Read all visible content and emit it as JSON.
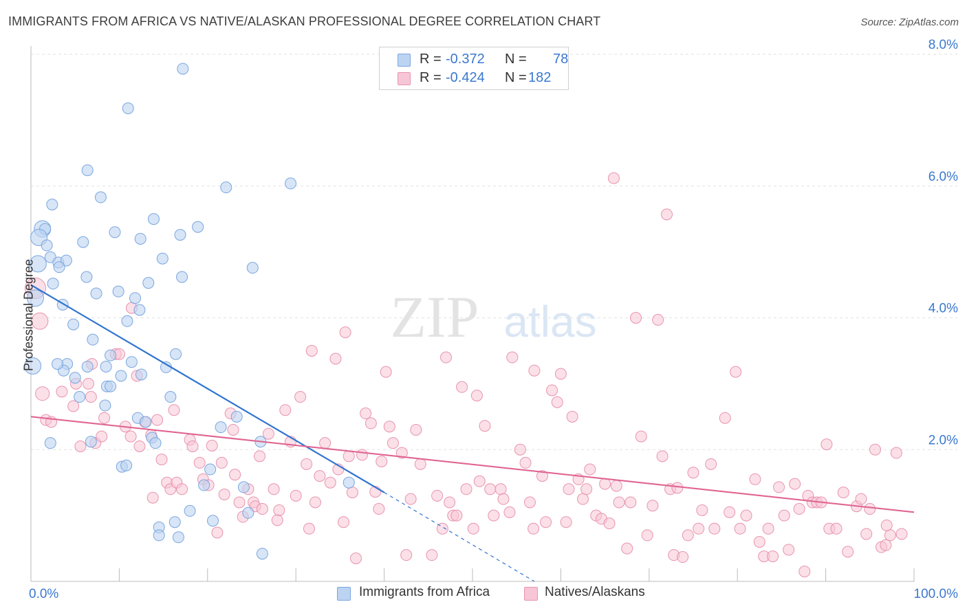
{
  "title": "IMMIGRANTS FROM AFRICA VS NATIVE/ALASKAN PROFESSIONAL DEGREE CORRELATION CHART",
  "source": "Source: ZipAtlas.com",
  "watermark": {
    "zip": "ZIP",
    "atlas": "atlas"
  },
  "colors": {
    "blue_fill": "#bcd4f2",
    "blue_stroke": "#7aa6de",
    "blue_line": "#2f74d0",
    "pink_fill": "#f7c6d6",
    "pink_stroke": "#e893b0",
    "pink_line": "#e06592",
    "axis_value": "#3a78cf",
    "grid": "#e2e2e2"
  },
  "legend": {
    "rows": [
      {
        "r_label": "R =",
        "r_value": "-0.372",
        "n_label": "N =",
        "n_value": "78"
      },
      {
        "r_label": "R =",
        "r_value": "-0.424",
        "n_label": "N =",
        "n_value": "182"
      }
    ]
  },
  "bottom_legend": {
    "series1": "Immigrants from Africa",
    "series2": "Natives/Alaskans"
  },
  "chart_data": {
    "type": "scatter",
    "title": "IMMIGRANTS FROM AFRICA VS NATIVE/ALASKAN PROFESSIONAL DEGREE CORRELATION CHART",
    "xlabel": "",
    "ylabel": "Professional Degree",
    "xlim": [
      0,
      100
    ],
    "ylim": [
      0,
      8.0
    ],
    "x_tick_labels": [
      "0.0%",
      "100.0%"
    ],
    "y_ticks": [
      2.0,
      4.0,
      6.0,
      8.0
    ],
    "y_tick_labels": [
      "2.0%",
      "4.0%",
      "6.0%",
      "8.0%"
    ],
    "grid": true,
    "legend_position": "top-center",
    "series": [
      {
        "name": "Immigrants from Africa",
        "r": -0.372,
        "n": 78,
        "trend": {
          "x": [
            0,
            40
          ],
          "y": [
            4.5,
            1.35
          ],
          "dashed_to": [
            57,
            0
          ]
        },
        "points": [
          [
            17.2,
            7.78
          ],
          [
            11.0,
            7.18
          ],
          [
            6.4,
            6.24
          ],
          [
            22.1,
            5.98
          ],
          [
            29.4,
            6.04
          ],
          [
            2.4,
            5.72
          ],
          [
            7.9,
            5.83
          ],
          [
            1.3,
            5.35
          ],
          [
            1.6,
            5.35
          ],
          [
            9.5,
            5.3
          ],
          [
            13.9,
            5.5
          ],
          [
            0.9,
            5.22
          ],
          [
            1.8,
            5.1
          ],
          [
            5.9,
            5.15
          ],
          [
            12.4,
            5.2
          ],
          [
            16.9,
            5.26
          ],
          [
            18.9,
            5.38
          ],
          [
            2.2,
            4.92
          ],
          [
            0.8,
            4.82
          ],
          [
            3.1,
            4.84
          ],
          [
            4.0,
            4.87
          ],
          [
            14.9,
            4.9
          ],
          [
            3.2,
            4.77
          ],
          [
            25.1,
            4.76
          ],
          [
            6.3,
            4.62
          ],
          [
            17.1,
            4.62
          ],
          [
            2.5,
            4.52
          ],
          [
            13.3,
            4.53
          ],
          [
            7.4,
            4.37
          ],
          [
            9.9,
            4.4
          ],
          [
            0.5,
            4.3
          ],
          [
            11.8,
            4.3
          ],
          [
            3.6,
            4.2
          ],
          [
            12.3,
            4.12
          ],
          [
            10.9,
            3.95
          ],
          [
            4.8,
            3.9
          ],
          [
            7.0,
            3.67
          ],
          [
            9.0,
            3.43
          ],
          [
            16.4,
            3.45
          ],
          [
            11.4,
            3.33
          ],
          [
            4.1,
            3.3
          ],
          [
            0.2,
            3.27
          ],
          [
            6.4,
            3.26
          ],
          [
            8.5,
            3.26
          ],
          [
            15.3,
            3.25
          ],
          [
            3.7,
            3.2
          ],
          [
            5.0,
            3.09
          ],
          [
            10.2,
            3.12
          ],
          [
            12.5,
            3.14
          ],
          [
            8.6,
            2.96
          ],
          [
            9.0,
            2.96
          ],
          [
            5.5,
            2.8
          ],
          [
            15.8,
            2.8
          ],
          [
            8.4,
            2.67
          ],
          [
            12.1,
            2.48
          ],
          [
            23.3,
            2.5
          ],
          [
            13.0,
            2.42
          ],
          [
            21.5,
            2.34
          ],
          [
            13.7,
            2.18
          ],
          [
            6.8,
            2.12
          ],
          [
            14.1,
            2.1
          ],
          [
            26.0,
            2.12
          ],
          [
            10.3,
            1.74
          ],
          [
            10.8,
            1.76
          ],
          [
            20.3,
            1.7
          ],
          [
            19.6,
            1.46
          ],
          [
            24.1,
            1.43
          ],
          [
            36.0,
            1.5
          ],
          [
            18.0,
            1.07
          ],
          [
            24.6,
            1.04
          ],
          [
            14.5,
            0.82
          ],
          [
            16.3,
            0.9
          ],
          [
            20.6,
            0.92
          ],
          [
            14.5,
            0.7
          ],
          [
            16.7,
            0.67
          ],
          [
            26.2,
            0.42
          ],
          [
            2.2,
            2.1
          ],
          [
            3.0,
            3.3
          ]
        ]
      },
      {
        "name": "Natives/Alaskans",
        "r": -0.424,
        "n": 182,
        "trend": {
          "x": [
            0,
            100
          ],
          "y": [
            2.5,
            1.05
          ]
        },
        "points": [
          [
            0.5,
            4.45
          ],
          [
            1.0,
            3.95
          ],
          [
            1.3,
            2.85
          ],
          [
            1.7,
            2.45
          ],
          [
            2.3,
            2.42
          ],
          [
            3.5,
            2.88
          ],
          [
            4.8,
            2.66
          ],
          [
            5.1,
            3.0
          ],
          [
            5.6,
            2.05
          ],
          [
            6.5,
            3.0
          ],
          [
            6.8,
            2.8
          ],
          [
            6.9,
            3.3
          ],
          [
            7.3,
            2.1
          ],
          [
            8.0,
            2.2
          ],
          [
            8.3,
            2.48
          ],
          [
            9.6,
            3.45
          ],
          [
            10.0,
            3.45
          ],
          [
            10.7,
            2.35
          ],
          [
            11.3,
            2.2
          ],
          [
            11.4,
            4.15
          ],
          [
            12.0,
            3.12
          ],
          [
            12.3,
            2.05
          ],
          [
            12.9,
            2.42
          ],
          [
            13.6,
            2.22
          ],
          [
            13.8,
            1.27
          ],
          [
            14.3,
            2.45
          ],
          [
            14.8,
            1.85
          ],
          [
            15.4,
            1.5
          ],
          [
            15.8,
            1.4
          ],
          [
            16.2,
            2.6
          ],
          [
            16.5,
            1.5
          ],
          [
            17.1,
            1.4
          ],
          [
            18.0,
            2.15
          ],
          [
            18.3,
            2.05
          ],
          [
            19.1,
            1.8
          ],
          [
            19.5,
            1.55
          ],
          [
            20.1,
            1.46
          ],
          [
            20.5,
            2.06
          ],
          [
            21.1,
            0.74
          ],
          [
            21.6,
            1.8
          ],
          [
            21.9,
            1.32
          ],
          [
            22.6,
            2.55
          ],
          [
            22.9,
            2.3
          ],
          [
            23.1,
            1.62
          ],
          [
            23.6,
            1.2
          ],
          [
            24.0,
            0.98
          ],
          [
            24.6,
            1.4
          ],
          [
            25.2,
            1.2
          ],
          [
            25.4,
            1.14
          ],
          [
            25.9,
            1.9
          ],
          [
            26.2,
            1.1
          ],
          [
            26.9,
            2.24
          ],
          [
            27.5,
            1.4
          ],
          [
            27.9,
            0.93
          ],
          [
            28.1,
            1.08
          ],
          [
            28.8,
            2.6
          ],
          [
            29.4,
            2.12
          ],
          [
            30.0,
            1.3
          ],
          [
            30.5,
            2.8
          ],
          [
            31.2,
            1.78
          ],
          [
            31.5,
            0.8
          ],
          [
            31.8,
            3.5
          ],
          [
            32.2,
            1.2
          ],
          [
            32.7,
            1.6
          ],
          [
            33.3,
            2.1
          ],
          [
            33.9,
            1.5
          ],
          [
            34.5,
            3.38
          ],
          [
            34.8,
            1.7
          ],
          [
            35.4,
            0.9
          ],
          [
            35.6,
            3.78
          ],
          [
            36.0,
            1.9
          ],
          [
            36.4,
            1.35
          ],
          [
            36.8,
            0.35
          ],
          [
            37.5,
            1.92
          ],
          [
            37.9,
            2.55
          ],
          [
            38.5,
            2.4
          ],
          [
            39.0,
            1.36
          ],
          [
            39.4,
            1.1
          ],
          [
            39.7,
            1.82
          ],
          [
            40.2,
            3.18
          ],
          [
            40.6,
            2.35
          ],
          [
            41.0,
            2.1
          ],
          [
            42.0,
            1.95
          ],
          [
            42.5,
            0.4
          ],
          [
            43.0,
            1.25
          ],
          [
            43.6,
            2.3
          ],
          [
            44.1,
            1.78
          ],
          [
            45.4,
            0.4
          ],
          [
            46.0,
            1.3
          ],
          [
            46.6,
            0.8
          ],
          [
            47.0,
            3.4
          ],
          [
            47.4,
            1.2
          ],
          [
            47.8,
            1.0
          ],
          [
            48.2,
            1.0
          ],
          [
            48.8,
            2.95
          ],
          [
            49.3,
            1.4
          ],
          [
            50.1,
            0.8
          ],
          [
            50.5,
            2.82
          ],
          [
            50.8,
            1.52
          ],
          [
            51.4,
            2.36
          ],
          [
            52.0,
            1.4
          ],
          [
            52.4,
            1.0
          ],
          [
            53.2,
            1.4
          ],
          [
            53.5,
            1.25
          ],
          [
            54.2,
            1.05
          ],
          [
            54.5,
            3.4
          ],
          [
            55.4,
            2.0
          ],
          [
            56.0,
            1.8
          ],
          [
            56.5,
            1.2
          ],
          [
            56.9,
            0.8
          ],
          [
            57.0,
            3.2
          ],
          [
            57.9,
            1.6
          ],
          [
            58.3,
            0.9
          ],
          [
            59.0,
            2.9
          ],
          [
            59.6,
            2.72
          ],
          [
            60.0,
            3.15
          ],
          [
            60.6,
            0.9
          ],
          [
            60.9,
            1.4
          ],
          [
            61.3,
            2.5
          ],
          [
            62.0,
            1.55
          ],
          [
            62.5,
            1.25
          ],
          [
            62.9,
            1.4
          ],
          [
            63.3,
            1.7
          ],
          [
            64.0,
            1.0
          ],
          [
            64.6,
            0.95
          ],
          [
            65.0,
            1.48
          ],
          [
            65.5,
            0.88
          ],
          [
            66.0,
            6.12
          ],
          [
            66.3,
            1.45
          ],
          [
            66.6,
            1.2
          ],
          [
            67.5,
            0.5
          ],
          [
            67.9,
            1.2
          ],
          [
            68.5,
            4.0
          ],
          [
            69.1,
            2.2
          ],
          [
            69.8,
            0.7
          ],
          [
            70.4,
            1.15
          ],
          [
            71.0,
            3.97
          ],
          [
            71.5,
            1.9
          ],
          [
            72.0,
            5.57
          ],
          [
            72.4,
            1.4
          ],
          [
            72.8,
            0.4
          ],
          [
            73.2,
            1.42
          ],
          [
            73.8,
            0.37
          ],
          [
            74.4,
            0.7
          ],
          [
            75.0,
            1.65
          ],
          [
            75.6,
            0.8
          ],
          [
            76.0,
            1.08
          ],
          [
            77.0,
            1.78
          ],
          [
            77.4,
            0.8
          ],
          [
            78.6,
            2.48
          ],
          [
            79.1,
            1.05
          ],
          [
            79.8,
            3.18
          ],
          [
            80.3,
            0.8
          ],
          [
            81.0,
            1.0
          ],
          [
            82.0,
            1.55
          ],
          [
            82.5,
            0.6
          ],
          [
            83.0,
            0.38
          ],
          [
            83.5,
            0.8
          ],
          [
            84.0,
            0.38
          ],
          [
            84.7,
            1.43
          ],
          [
            85.3,
            1.0
          ],
          [
            85.8,
            0.48
          ],
          [
            86.5,
            1.48
          ],
          [
            87.0,
            1.1
          ],
          [
            87.6,
            0.15
          ],
          [
            88.0,
            1.3
          ],
          [
            88.5,
            1.2
          ],
          [
            89.0,
            1.2
          ],
          [
            89.5,
            1.2
          ],
          [
            90.1,
            2.08
          ],
          [
            90.4,
            0.8
          ],
          [
            91.2,
            0.8
          ],
          [
            92.0,
            1.35
          ],
          [
            92.5,
            0.45
          ],
          [
            93.5,
            1.14
          ],
          [
            94.0,
            1.25
          ],
          [
            94.6,
            0.72
          ],
          [
            95.6,
            2.0
          ],
          [
            96.3,
            0.52
          ],
          [
            96.9,
            0.85
          ],
          [
            97.3,
            0.7
          ],
          [
            98.0,
            1.95
          ],
          [
            98.6,
            0.72
          ],
          [
            96.8,
            0.55
          ],
          [
            95.0,
            1.1
          ]
        ]
      }
    ]
  }
}
